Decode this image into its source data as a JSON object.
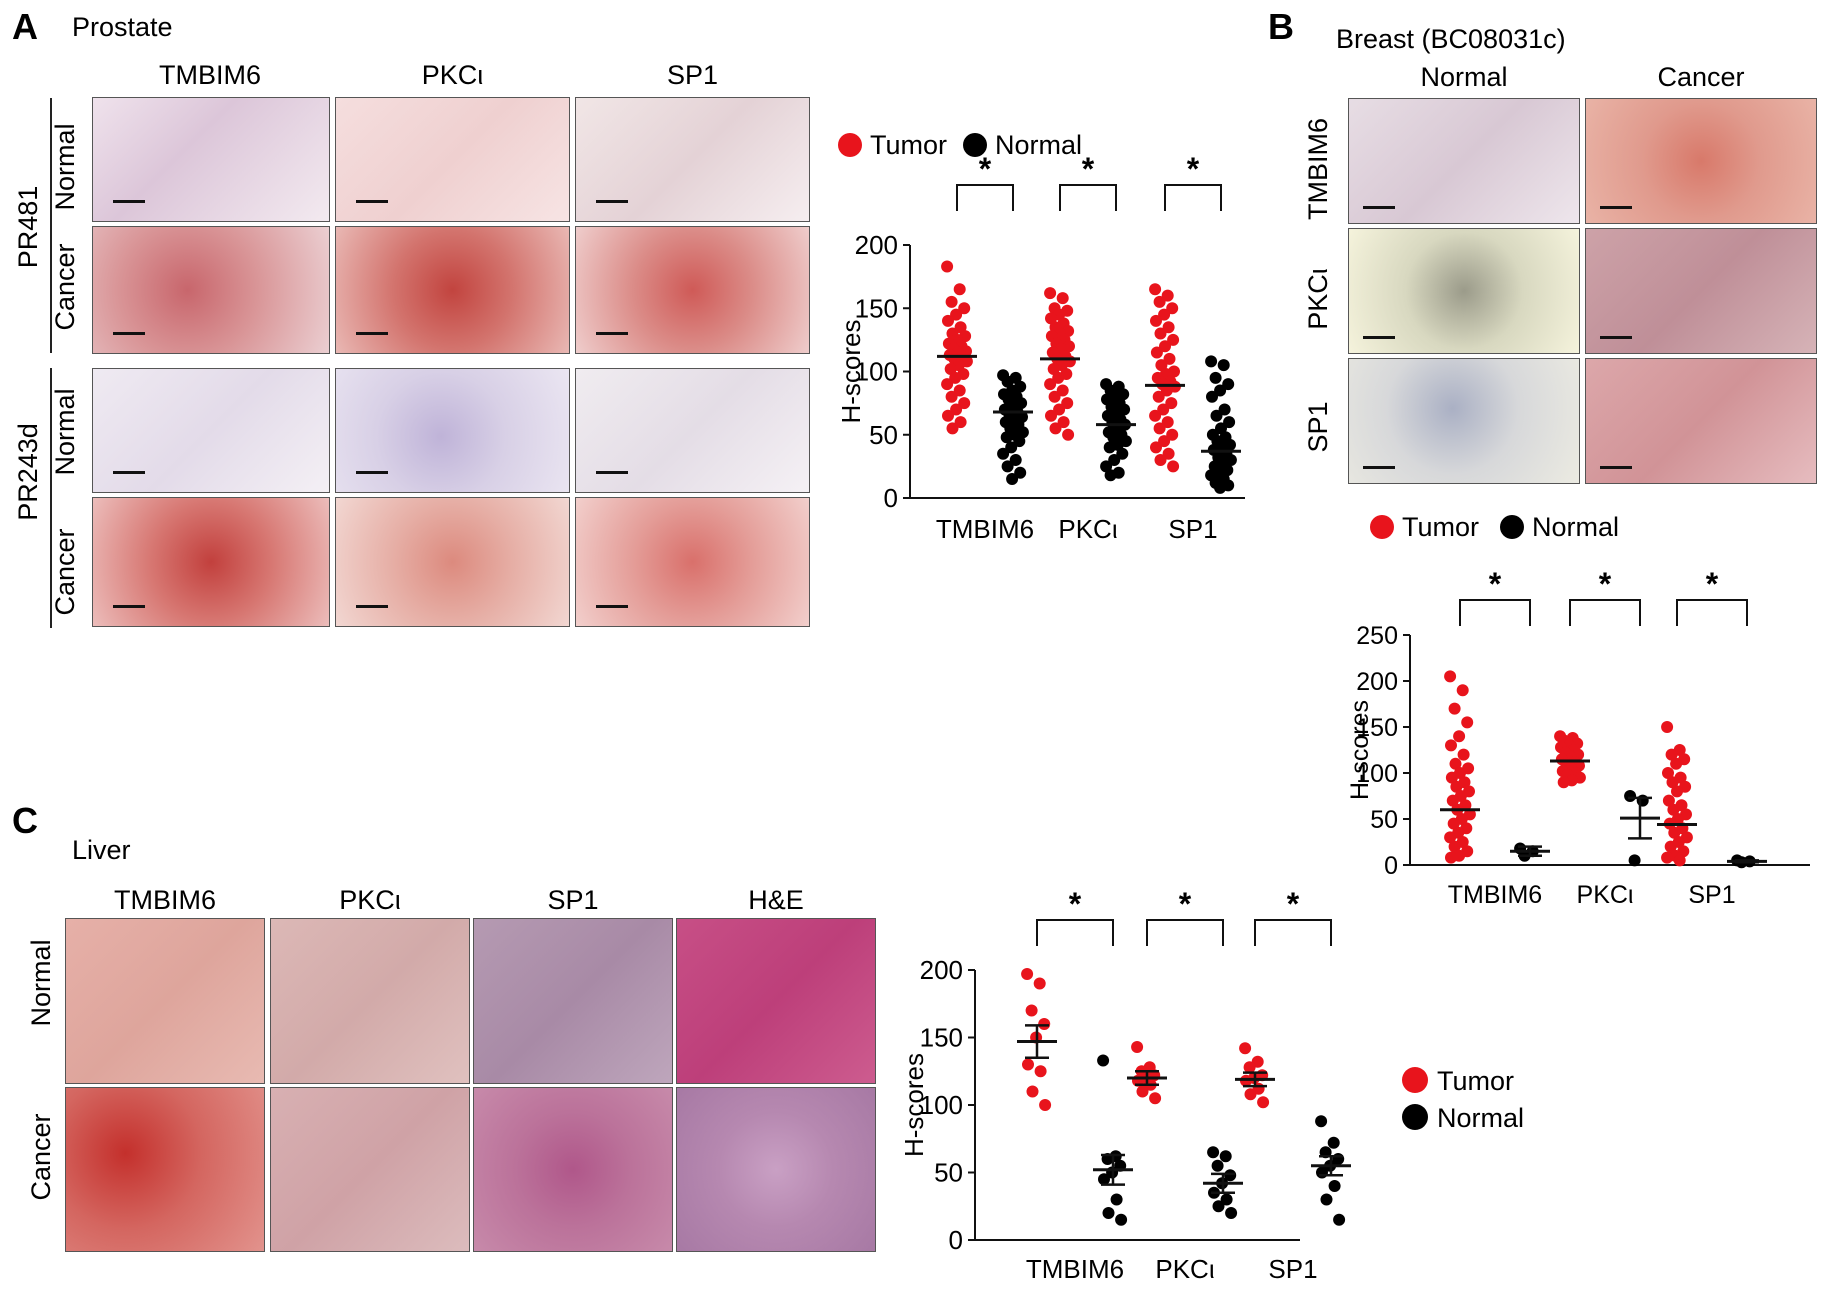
{
  "panelA": {
    "letter": "A",
    "title": "Prostate",
    "columns": [
      "TMBIM6",
      "PKCι",
      "SP1"
    ],
    "groups": [
      "PR481",
      "PR243d"
    ],
    "rows": [
      "Normal",
      "Cancer",
      "Normal",
      "Cancer"
    ]
  },
  "panelB": {
    "letter": "B",
    "title": "Breast (BC08031c)",
    "columns": [
      "Normal",
      "Cancer"
    ],
    "rows": [
      "TMBIM6",
      "PKCι",
      "SP1"
    ]
  },
  "panelC": {
    "letter": "C",
    "title": "Liver",
    "columns": [
      "TMBIM6",
      "PKCι",
      "SP1",
      "H&E"
    ],
    "rows": [
      "Normal",
      "Cancer"
    ]
  },
  "legend": {
    "tumor": "Tumor",
    "normal": "Normal"
  },
  "colors": {
    "tumor": "#e8141c",
    "normal": "#000000"
  },
  "chart_data": [
    {
      "id": "A",
      "type": "scatter",
      "ylabel": "H-scores",
      "ylim": [
        0,
        200
      ],
      "yticks": [
        0,
        50,
        100,
        150,
        200
      ],
      "categories": [
        "TMBIM6",
        "PKCι",
        "SP1"
      ],
      "significance": [
        "*",
        "*",
        "*"
      ],
      "series": [
        {
          "name": "Tumor",
          "means": [
            112,
            110,
            89
          ],
          "points": [
            [
              183,
              165,
              155,
              150,
              145,
              140,
              135,
              130,
              128,
              125,
              122,
              120,
              118,
              116,
              115,
              113,
              112,
              110,
              108,
              105,
              102,
              98,
              95,
              90,
              85,
              80,
              75,
              70,
              65,
              60,
              55
            ],
            [
              162,
              158,
              150,
              148,
              145,
              142,
              138,
              135,
              132,
              130,
              128,
              125,
              122,
              120,
              118,
              115,
              112,
              110,
              108,
              105,
              102,
              98,
              95,
              90,
              85,
              80,
              75,
              70,
              65,
              60,
              55,
              50
            ],
            [
              165,
              160,
              155,
              150,
              145,
              140,
              135,
              130,
              125,
              120,
              115,
              110,
              105,
              100,
              98,
              95,
              92,
              90,
              88,
              85,
              80,
              75,
              70,
              65,
              60,
              55,
              50,
              45,
              40,
              35,
              30,
              25
            ]
          ]
        },
        {
          "name": "Normal",
          "means": [
            68,
            58,
            37
          ],
          "points": [
            [
              97,
              95,
              92,
              88,
              85,
              82,
              80,
              78,
              75,
              72,
              70,
              68,
              66,
              64,
              62,
              60,
              58,
              55,
              52,
              50,
              48,
              45,
              40,
              35,
              30,
              25,
              20,
              15
            ],
            [
              90,
              88,
              85,
              82,
              80,
              78,
              75,
              72,
              70,
              68,
              65,
              62,
              60,
              58,
              55,
              52,
              50,
              48,
              45,
              42,
              40,
              35,
              30,
              25,
              20,
              18
            ],
            [
              108,
              105,
              95,
              90,
              85,
              80,
              70,
              65,
              60,
              55,
              50,
              48,
              45,
              42,
              40,
              38,
              35,
              32,
              30,
              28,
              25,
              22,
              20,
              18,
              15,
              12,
              10,
              8
            ]
          ]
        }
      ]
    },
    {
      "id": "B",
      "type": "scatter",
      "ylabel": "H-scores",
      "ylim": [
        0,
        250
      ],
      "yticks": [
        0,
        50,
        100,
        150,
        200,
        250
      ],
      "categories": [
        "TMBIM6",
        "PKCι",
        "SP1"
      ],
      "significance": [
        "*",
        "*",
        "*"
      ],
      "series": [
        {
          "name": "Tumor",
          "means": [
            60,
            113,
            44
          ],
          "sem": [
            null,
            null,
            null
          ],
          "points": [
            [
              205,
              190,
              170,
              155,
              140,
              130,
              120,
              110,
              105,
              100,
              95,
              90,
              85,
              80,
              75,
              70,
              65,
              60,
              55,
              50,
              45,
              40,
              35,
              30,
              25,
              20,
              15,
              10,
              8
            ],
            [
              140,
              138,
              135,
              132,
              130,
              128,
              125,
              122,
              120,
              118,
              115,
              112,
              110,
              108,
              105,
              102,
              100,
              98,
              95,
              92,
              90
            ],
            [
              150,
              125,
              120,
              115,
              110,
              100,
              95,
              90,
              85,
              80,
              70,
              65,
              60,
              55,
              50,
              45,
              40,
              35,
              30,
              25,
              20,
              15,
              10,
              8,
              5
            ]
          ]
        },
        {
          "name": "Normal",
          "means": [
            15,
            51,
            4
          ],
          "sem": [
            5,
            22,
            1
          ],
          "points": [
            [
              18,
              15,
              10
            ],
            [
              75,
              70,
              5
            ],
            [
              5,
              4,
              3
            ]
          ]
        }
      ]
    },
    {
      "id": "C",
      "type": "scatter",
      "ylabel": "H-scores",
      "ylim": [
        0,
        200
      ],
      "yticks": [
        0,
        50,
        100,
        150,
        200
      ],
      "categories": [
        "TMBIM6",
        "PKCι",
        "SP1"
      ],
      "significance": [
        "*",
        "*",
        "*"
      ],
      "series": [
        {
          "name": "Tumor",
          "means": [
            147,
            120,
            119
          ],
          "sem": [
            12,
            5,
            5
          ],
          "points": [
            [
              197,
              190,
              170,
              160,
              150,
              130,
              125,
              110,
              100
            ],
            [
              143,
              128,
              125,
              122,
              120,
              118,
              115,
              110,
              105
            ],
            [
              142,
              132,
              128,
              122,
              120,
              118,
              112,
              108,
              102
            ]
          ]
        },
        {
          "name": "Normal",
          "means": [
            52,
            42,
            55
          ],
          "sem": [
            11,
            7,
            7
          ],
          "points": [
            [
              133,
              62,
              60,
              55,
              50,
              45,
              30,
              20,
              15
            ],
            [
              65,
              62,
              55,
              48,
              42,
              35,
              30,
              25,
              20
            ],
            [
              88,
              72,
              65,
              60,
              55,
              50,
              40,
              30,
              15
            ]
          ]
        }
      ]
    }
  ]
}
